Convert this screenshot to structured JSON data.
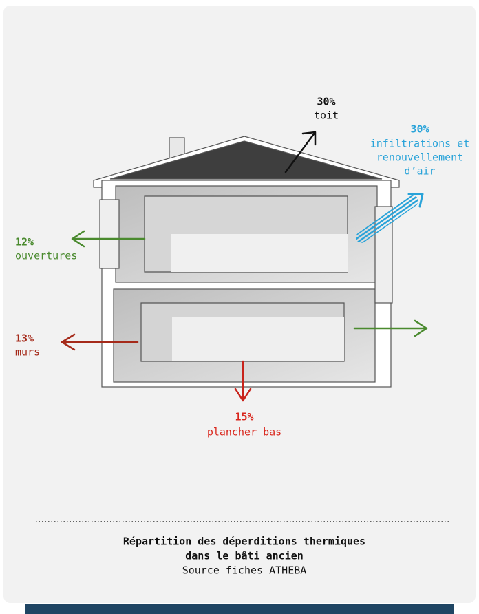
{
  "labels": {
    "roof": {
      "percent": "30%",
      "lines": [
        "toit"
      ]
    },
    "air": {
      "percent": "30%",
      "lines": [
        "infiltrations et",
        "renouvellement",
        "d’air"
      ]
    },
    "openings": {
      "percent": "12%",
      "lines": [
        "ouvertures"
      ]
    },
    "walls": {
      "percent": "13%",
      "lines": [
        "murs"
      ]
    },
    "floor": {
      "percent": "15%",
      "lines": [
        "plancher bas"
      ]
    }
  },
  "caption": {
    "title": [
      "Répartition des déperditions thermiques",
      "dans le bâti ancien"
    ],
    "source": "Source fiches ATHEBA"
  }
}
